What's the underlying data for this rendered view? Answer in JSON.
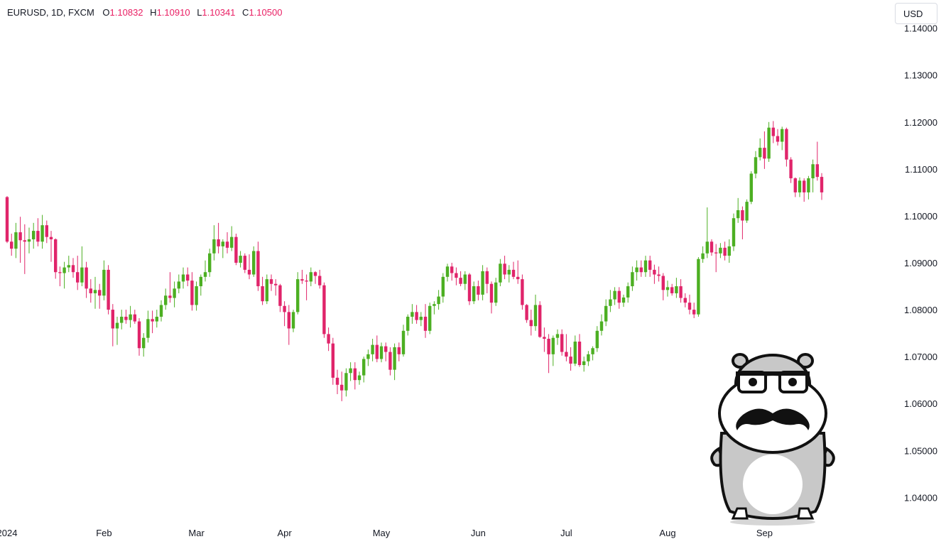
{
  "header": {
    "symbol": "EURUSD, 1D, FXCM",
    "open_label": "O",
    "open": "1.10832",
    "high_label": "H",
    "high": "1.10910",
    "low_label": "L",
    "low": "1.10341",
    "close_label": "C",
    "close": "1.10500"
  },
  "currency_button": "USD",
  "colors": {
    "up": "#4caf22",
    "down": "#e0246a",
    "text": "#131722"
  },
  "chart_data": {
    "type": "candlestick",
    "ylim": [
      1.034,
      1.146
    ],
    "y_ticks": [
      "1.14000",
      "1.13000",
      "1.12000",
      "1.11000",
      "1.10000",
      "1.09000",
      "1.08000",
      "1.07000",
      "1.06000",
      "1.05000",
      "1.04000"
    ],
    "y_tick_values": [
      1.14,
      1.13,
      1.12,
      1.11,
      1.1,
      1.09,
      1.08,
      1.07,
      1.06,
      1.05,
      1.04
    ],
    "x_ticks": [
      {
        "label": "2024",
        "index": 0
      },
      {
        "label": "Feb",
        "index": 22
      },
      {
        "label": "Mar",
        "index": 43
      },
      {
        "label": "Apr",
        "index": 63
      },
      {
        "label": "May",
        "index": 85
      },
      {
        "label": "Jun",
        "index": 107
      },
      {
        "label": "Jul",
        "index": 127
      },
      {
        "label": "Aug",
        "index": 150
      },
      {
        "label": "Sep",
        "index": 172
      }
    ],
    "candles": [
      [
        1.104,
        1.1042,
        1.0942,
        1.0945
      ],
      [
        1.0945,
        1.0962,
        1.0915,
        1.093
      ],
      [
        1.093,
        1.0985,
        1.091,
        1.0965
      ],
      [
        1.0965,
        1.0998,
        1.09,
        1.0948
      ],
      [
        1.0948,
        1.0982,
        1.0876,
        1.0945
      ],
      [
        1.0945,
        1.0975,
        1.092,
        1.095
      ],
      [
        1.095,
        1.0985,
        1.093,
        1.0968
      ],
      [
        1.0968,
        1.0995,
        1.0935,
        1.0945
      ],
      [
        1.0945,
        1.1002,
        1.093,
        1.098
      ],
      [
        1.098,
        1.099,
        1.0942,
        1.0955
      ],
      [
        1.0955,
        1.0968,
        1.0902,
        1.095
      ],
      [
        1.095,
        1.0952,
        1.0866,
        1.088
      ],
      [
        1.088,
        1.0892,
        1.085,
        1.0878
      ],
      [
        1.0878,
        1.0902,
        1.0845,
        1.089
      ],
      [
        1.089,
        1.0915,
        1.088,
        1.0895
      ],
      [
        1.0895,
        1.091,
        1.0868,
        1.088
      ],
      [
        1.088,
        1.0915,
        1.0842,
        1.0858
      ],
      [
        1.0858,
        1.0935,
        1.085,
        1.089
      ],
      [
        1.089,
        1.0902,
        1.0825,
        1.0845
      ],
      [
        1.0845,
        1.0865,
        1.0815,
        1.0835
      ],
      [
        1.0835,
        1.087,
        1.0802,
        1.0842
      ],
      [
        1.0842,
        1.0855,
        1.0802,
        1.083
      ],
      [
        1.083,
        1.0905,
        1.082,
        1.0885
      ],
      [
        1.0885,
        1.0895,
        1.079,
        1.08
      ],
      [
        1.08,
        1.0812,
        1.0722,
        1.076
      ],
      [
        1.076,
        1.0785,
        1.0725,
        1.0772
      ],
      [
        1.0772,
        1.08,
        1.0758,
        1.0785
      ],
      [
        1.0785,
        1.08,
        1.077,
        1.0778
      ],
      [
        1.0778,
        1.0808,
        1.0762,
        1.079
      ],
      [
        1.079,
        1.08,
        1.077,
        1.0775
      ],
      [
        1.0775,
        1.0782,
        1.0702,
        1.0718
      ],
      [
        1.0718,
        1.075,
        1.07,
        1.074
      ],
      [
        1.074,
        1.0798,
        1.073,
        1.078
      ],
      [
        1.078,
        1.0798,
        1.075,
        1.0775
      ],
      [
        1.0775,
        1.08,
        1.0762,
        1.0785
      ],
      [
        1.0785,
        1.082,
        1.0775,
        1.081
      ],
      [
        1.081,
        1.0845,
        1.08,
        1.083
      ],
      [
        1.083,
        1.088,
        1.0815,
        1.0825
      ],
      [
        1.0825,
        1.086,
        1.0805,
        1.0845
      ],
      [
        1.0845,
        1.0875,
        1.0835,
        1.086
      ],
      [
        1.086,
        1.089,
        1.0845,
        1.0875
      ],
      [
        1.0875,
        1.089,
        1.085,
        1.0862
      ],
      [
        1.0862,
        1.088,
        1.0798,
        1.081
      ],
      [
        1.081,
        1.086,
        1.0798,
        1.085
      ],
      [
        1.085,
        1.0875,
        1.083,
        1.087
      ],
      [
        1.087,
        1.0905,
        1.086,
        1.088
      ],
      [
        1.088,
        1.093,
        1.087,
        1.092
      ],
      [
        1.092,
        1.098,
        1.0905,
        1.095
      ],
      [
        1.095,
        1.0985,
        1.092,
        1.0935
      ],
      [
        1.0935,
        1.095,
        1.091,
        1.0945
      ],
      [
        1.0945,
        1.0965,
        1.092,
        1.0932
      ],
      [
        1.0932,
        1.0978,
        1.0925,
        1.0955
      ],
      [
        1.0955,
        1.0962,
        1.0895,
        1.09
      ],
      [
        1.09,
        1.0925,
        1.089,
        1.0915
      ],
      [
        1.0915,
        1.092,
        1.0878,
        1.0885
      ],
      [
        1.0885,
        1.0918,
        1.0865,
        1.0875
      ],
      [
        1.0875,
        1.0935,
        1.087,
        1.0925
      ],
      [
        1.0925,
        1.0945,
        1.084,
        1.085
      ],
      [
        1.085,
        1.087,
        1.081,
        1.0818
      ],
      [
        1.0818,
        1.0875,
        1.0812,
        1.0865
      ],
      [
        1.0865,
        1.0875,
        1.084,
        1.0855
      ],
      [
        1.0855,
        1.0865,
        1.083,
        1.0852
      ],
      [
        1.0852,
        1.0855,
        1.0795,
        1.0808
      ],
      [
        1.0808,
        1.0818,
        1.0765,
        1.0795
      ],
      [
        1.0795,
        1.081,
        1.0725,
        1.076
      ],
      [
        1.076,
        1.08,
        1.0752,
        1.0795
      ],
      [
        1.0795,
        1.088,
        1.079,
        1.0865
      ],
      [
        1.0865,
        1.0885,
        1.0855,
        1.0862
      ],
      [
        1.0862,
        1.0875,
        1.082,
        1.086
      ],
      [
        1.086,
        1.089,
        1.085,
        1.088
      ],
      [
        1.088,
        1.0882,
        1.0855,
        1.0872
      ],
      [
        1.0872,
        1.0885,
        1.0845,
        1.0852
      ],
      [
        1.0852,
        1.0858,
        1.074,
        1.0748
      ],
      [
        1.0748,
        1.0762,
        1.0712,
        1.0728
      ],
      [
        1.0728,
        1.074,
        1.064,
        1.0655
      ],
      [
        1.0655,
        1.0672,
        1.062,
        1.064
      ],
      [
        1.064,
        1.0668,
        1.0605,
        1.0628
      ],
      [
        1.0628,
        1.0675,
        1.0615,
        1.0665
      ],
      [
        1.0665,
        1.0688,
        1.0648,
        1.0675
      ],
      [
        1.0675,
        1.0688,
        1.063,
        1.065
      ],
      [
        1.065,
        1.0668,
        1.064,
        1.066
      ],
      [
        1.066,
        1.07,
        1.0645,
        1.0695
      ],
      [
        1.0695,
        1.0715,
        1.068,
        1.0705
      ],
      [
        1.0705,
        1.0738,
        1.069,
        1.0725
      ],
      [
        1.0725,
        1.0745,
        1.0688,
        1.0695
      ],
      [
        1.0695,
        1.073,
        1.0688,
        1.0722
      ],
      [
        1.0722,
        1.073,
        1.069,
        1.071
      ],
      [
        1.071,
        1.072,
        1.066,
        1.0672
      ],
      [
        1.0672,
        1.0728,
        1.065,
        1.072
      ],
      [
        1.072,
        1.073,
        1.069,
        1.0705
      ],
      [
        1.0705,
        1.0768,
        1.07,
        1.0755
      ],
      [
        1.0755,
        1.079,
        1.0745,
        1.0785
      ],
      [
        1.0785,
        1.0812,
        1.077,
        1.0795
      ],
      [
        1.0795,
        1.081,
        1.077,
        1.0778
      ],
      [
        1.0778,
        1.0795,
        1.0765,
        1.0785
      ],
      [
        1.0785,
        1.0812,
        1.074,
        1.0755
      ],
      [
        1.0755,
        1.0815,
        1.0748,
        1.0808
      ],
      [
        1.0808,
        1.0818,
        1.079,
        1.0812
      ],
      [
        1.0812,
        1.0842,
        1.08,
        1.0828
      ],
      [
        1.0828,
        1.0878,
        1.0815,
        1.087
      ],
      [
        1.087,
        1.0898,
        1.086,
        1.0892
      ],
      [
        1.0892,
        1.09,
        1.0862,
        1.0878
      ],
      [
        1.0878,
        1.089,
        1.0852,
        1.0868
      ],
      [
        1.0868,
        1.0882,
        1.085,
        1.0855
      ],
      [
        1.0855,
        1.0882,
        1.0842,
        1.0875
      ],
      [
        1.0875,
        1.0878,
        1.081,
        1.0818
      ],
      [
        1.0818,
        1.086,
        1.0812,
        1.085
      ],
      [
        1.085,
        1.0862,
        1.082,
        1.0832
      ],
      [
        1.0832,
        1.0895,
        1.082,
        1.0882
      ],
      [
        1.0882,
        1.089,
        1.0835,
        1.0855
      ],
      [
        1.0855,
        1.086,
        1.0792,
        1.0815
      ],
      [
        1.0815,
        1.0868,
        1.0808,
        1.0858
      ],
      [
        1.0858,
        1.0908,
        1.085,
        1.0898
      ],
      [
        1.0898,
        1.0915,
        1.0865,
        1.0875
      ],
      [
        1.0875,
        1.0895,
        1.0858,
        1.0885
      ],
      [
        1.0885,
        1.0902,
        1.0865,
        1.087
      ],
      [
        1.087,
        1.0905,
        1.0855,
        1.0865
      ],
      [
        1.0865,
        1.0875,
        1.08,
        1.081
      ],
      [
        1.081,
        1.0812,
        1.0772,
        1.0778
      ],
      [
        1.0778,
        1.08,
        1.0745,
        1.0765
      ],
      [
        1.0765,
        1.0832,
        1.0755,
        1.081
      ],
      [
        1.081,
        1.0818,
        1.074,
        1.0742
      ],
      [
        1.0742,
        1.0762,
        1.071,
        1.0738
      ],
      [
        1.0738,
        1.0748,
        1.0665,
        1.0705
      ],
      [
        1.0705,
        1.0745,
        1.068,
        1.074
      ],
      [
        1.074,
        1.0758,
        1.0725,
        1.0748
      ],
      [
        1.0748,
        1.0758,
        1.0702,
        1.071
      ],
      [
        1.071,
        1.0748,
        1.069,
        1.07
      ],
      [
        1.07,
        1.072,
        1.067,
        1.0685
      ],
      [
        1.0685,
        1.0745,
        1.068,
        1.0732
      ],
      [
        1.0732,
        1.0748,
        1.0678,
        1.0682
      ],
      [
        1.0682,
        1.07,
        1.0668,
        1.069
      ],
      [
        1.069,
        1.0712,
        1.068,
        1.0705
      ],
      [
        1.0705,
        1.0722,
        1.0692,
        1.0718
      ],
      [
        1.0718,
        1.0765,
        1.071,
        1.0755
      ],
      [
        1.0755,
        1.079,
        1.0745,
        1.0775
      ],
      [
        1.0775,
        1.0822,
        1.0765,
        1.0808
      ],
      [
        1.0808,
        1.0842,
        1.0795,
        1.0822
      ],
      [
        1.0822,
        1.0848,
        1.081,
        1.084
      ],
      [
        1.084,
        1.0848,
        1.0802,
        1.0815
      ],
      [
        1.0815,
        1.0832,
        1.0806,
        1.0826
      ],
      [
        1.0826,
        1.0858,
        1.0815,
        1.085
      ],
      [
        1.085,
        1.0892,
        1.084,
        1.088
      ],
      [
        1.088,
        1.0905,
        1.0862,
        1.089
      ],
      [
        1.089,
        1.0905,
        1.087,
        1.088
      ],
      [
        1.088,
        1.0915,
        1.087,
        1.0905
      ],
      [
        1.0905,
        1.0915,
        1.087,
        1.0885
      ],
      [
        1.0885,
        1.0896,
        1.0855,
        1.0875
      ],
      [
        1.0875,
        1.0892,
        1.086,
        1.0872
      ],
      [
        1.0872,
        1.0878,
        1.082,
        1.0842
      ],
      [
        1.0842,
        1.0862,
        1.0828,
        1.0848
      ],
      [
        1.0848,
        1.0855,
        1.083,
        1.0835
      ],
      [
        1.0835,
        1.0868,
        1.0825,
        1.085
      ],
      [
        1.085,
        1.0865,
        1.0815,
        1.0825
      ],
      [
        1.0825,
        1.0835,
        1.0805,
        1.0815
      ],
      [
        1.0815,
        1.0832,
        1.079,
        1.08
      ],
      [
        1.08,
        1.0815,
        1.0782,
        1.079
      ],
      [
        1.079,
        1.0912,
        1.0785,
        1.0908
      ],
      [
        1.0908,
        1.0935,
        1.09,
        1.092
      ],
      [
        1.092,
        1.1018,
        1.091,
        1.0945
      ],
      [
        1.0945,
        1.095,
        1.0915,
        1.0922
      ],
      [
        1.0922,
        1.094,
        1.088,
        1.092
      ],
      [
        1.092,
        1.0942,
        1.091,
        1.0932
      ],
      [
        1.0932,
        1.0945,
        1.0905,
        1.0915
      ],
      [
        1.0915,
        1.095,
        1.09,
        1.0935
      ],
      [
        1.0935,
        1.1005,
        1.0925,
        1.0995
      ],
      [
        1.0995,
        1.1038,
        1.0985,
        1.1012
      ],
      [
        1.1012,
        1.102,
        1.095,
        1.099
      ],
      [
        1.099,
        1.1035,
        1.0985,
        1.103
      ],
      [
        1.103,
        1.1095,
        1.1025,
        1.109
      ],
      [
        1.109,
        1.1138,
        1.108,
        1.1125
      ],
      [
        1.1125,
        1.1165,
        1.1118,
        1.1145
      ],
      [
        1.1145,
        1.118,
        1.11,
        1.1122
      ],
      [
        1.1122,
        1.12,
        1.1115,
        1.1188
      ],
      [
        1.1188,
        1.1202,
        1.1155,
        1.117
      ],
      [
        1.117,
        1.1185,
        1.115,
        1.1158
      ],
      [
        1.1158,
        1.119,
        1.114,
        1.1185
      ],
      [
        1.1185,
        1.1188,
        1.1105,
        1.112
      ],
      [
        1.112,
        1.1125,
        1.107,
        1.108
      ],
      [
        1.108,
        1.1082,
        1.104,
        1.105
      ],
      [
        1.105,
        1.1082,
        1.104,
        1.1075
      ],
      [
        1.1075,
        1.108,
        1.103,
        1.105
      ],
      [
        1.105,
        1.1085,
        1.1035,
        1.108
      ],
      [
        1.108,
        1.112,
        1.105,
        1.111
      ],
      [
        1.111,
        1.1158,
        1.1075,
        1.1083
      ],
      [
        1.1083,
        1.1091,
        1.1034,
        1.105
      ]
    ]
  }
}
